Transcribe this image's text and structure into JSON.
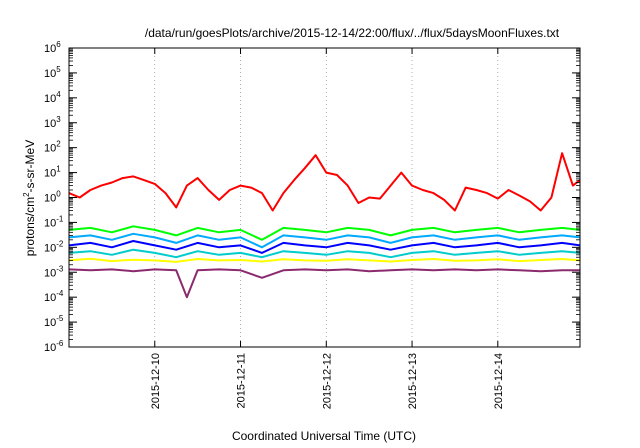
{
  "chart_data": {
    "type": "line",
    "title": "/data/run/goesPlots/archive/2015-12-14/22:00/flux/../flux/5daysMoonFluxes.txt",
    "xlabel": "Coordinated Universal Time (UTC)",
    "ylabel": {
      "prefix": "protons/cm",
      "sup": "2",
      "suffix": "-s-sr-MeV"
    },
    "x_range": [
      "2015-12-09 00:00",
      "2015-12-14 23:00"
    ],
    "x_ticks": [
      "2015-12-10",
      "2015-12-11",
      "2015-12-12",
      "2015-12-13",
      "2015-12-14"
    ],
    "y_scale": "log",
    "y_range": [
      1e-06,
      1000000.0
    ],
    "y_ticks": [
      {
        "base": "10",
        "exp": "-6",
        "value": 1e-06
      },
      {
        "base": "10",
        "exp": "-5",
        "value": 1e-05
      },
      {
        "base": "10",
        "exp": "-4",
        "value": 0.0001
      },
      {
        "base": "10",
        "exp": "-3",
        "value": 0.001
      },
      {
        "base": "10",
        "exp": "-2",
        "value": 0.01
      },
      {
        "base": "10",
        "exp": "-1",
        "value": 0.1
      },
      {
        "base": "10",
        "exp": "0",
        "value": 1
      },
      {
        "base": "10",
        "exp": "1",
        "value": 10
      },
      {
        "base": "10",
        "exp": "2",
        "value": 100
      },
      {
        "base": "10",
        "exp": "3",
        "value": 1000
      },
      {
        "base": "10",
        "exp": "4",
        "value": 10000
      },
      {
        "base": "10",
        "exp": "5",
        "value": 100000
      },
      {
        "base": "10",
        "exp": "6",
        "value": 1000000
      }
    ],
    "grid": "x dotted",
    "legend": "none",
    "series": [
      {
        "color": "#ff0000",
        "x": [
          "2015-12-09 00:00",
          "2015-12-09 03:00",
          "2015-12-09 06:00",
          "2015-12-09 09:00",
          "2015-12-09 12:00",
          "2015-12-09 15:00",
          "2015-12-09 18:00",
          "2015-12-09 21:00",
          "2015-12-10 00:00",
          "2015-12-10 03:00",
          "2015-12-10 06:00",
          "2015-12-10 09:00",
          "2015-12-10 12:00",
          "2015-12-10 15:00",
          "2015-12-10 18:00",
          "2015-12-10 21:00",
          "2015-12-11 00:00",
          "2015-12-11 03:00",
          "2015-12-11 06:00",
          "2015-12-11 09:00",
          "2015-12-11 12:00",
          "2015-12-11 15:00",
          "2015-12-11 18:00",
          "2015-12-11 21:00",
          "2015-12-12 00:00",
          "2015-12-12 03:00",
          "2015-12-12 06:00",
          "2015-12-12 09:00",
          "2015-12-12 12:00",
          "2015-12-12 15:00",
          "2015-12-12 18:00",
          "2015-12-12 21:00",
          "2015-12-13 00:00",
          "2015-12-13 03:00",
          "2015-12-13 06:00",
          "2015-12-13 09:00",
          "2015-12-13 12:00",
          "2015-12-13 15:00",
          "2015-12-13 18:00",
          "2015-12-13 21:00",
          "2015-12-14 00:00",
          "2015-12-14 03:00",
          "2015-12-14 06:00",
          "2015-12-14 09:00",
          "2015-12-14 12:00",
          "2015-12-14 15:00",
          "2015-12-14 18:00",
          "2015-12-14 21:00",
          "2015-12-14 23:00"
        ],
        "values": [
          1.5,
          1.0,
          2.0,
          3.0,
          4.0,
          6.0,
          7.0,
          5.0,
          3.5,
          1.5,
          0.4,
          3.0,
          6.0,
          2.0,
          0.8,
          2.0,
          3.0,
          2.5,
          1.5,
          0.3,
          1.5,
          5.0,
          15,
          50,
          10,
          8,
          3,
          0.6,
          1.0,
          0.9,
          3.0,
          10,
          3.0,
          2.0,
          1.5,
          0.8,
          0.3,
          2.5,
          2.0,
          1.5,
          0.9,
          2.0,
          1.2,
          0.7,
          0.3,
          1.0,
          60,
          3.0,
          5.0
        ]
      },
      {
        "color": "#00ff00",
        "x": [
          "2015-12-09 00:00",
          "2015-12-09 06:00",
          "2015-12-09 12:00",
          "2015-12-09 18:00",
          "2015-12-10 00:00",
          "2015-12-10 06:00",
          "2015-12-10 12:00",
          "2015-12-10 18:00",
          "2015-12-11 00:00",
          "2015-12-11 06:00",
          "2015-12-11 12:00",
          "2015-12-11 18:00",
          "2015-12-12 00:00",
          "2015-12-12 06:00",
          "2015-12-12 12:00",
          "2015-12-12 18:00",
          "2015-12-13 00:00",
          "2015-12-13 06:00",
          "2015-12-13 12:00",
          "2015-12-13 18:00",
          "2015-12-14 00:00",
          "2015-12-14 06:00",
          "2015-12-14 12:00",
          "2015-12-14 18:00",
          "2015-12-14 23:00"
        ],
        "values": [
          0.05,
          0.06,
          0.04,
          0.07,
          0.05,
          0.03,
          0.06,
          0.04,
          0.05,
          0.02,
          0.06,
          0.05,
          0.04,
          0.06,
          0.05,
          0.03,
          0.05,
          0.06,
          0.04,
          0.05,
          0.06,
          0.04,
          0.05,
          0.06,
          0.05
        ]
      },
      {
        "color": "#00aaff",
        "x": [
          "2015-12-09 00:00",
          "2015-12-09 06:00",
          "2015-12-09 12:00",
          "2015-12-09 18:00",
          "2015-12-10 00:00",
          "2015-12-10 06:00",
          "2015-12-10 12:00",
          "2015-12-10 18:00",
          "2015-12-11 00:00",
          "2015-12-11 06:00",
          "2015-12-11 12:00",
          "2015-12-11 18:00",
          "2015-12-12 00:00",
          "2015-12-12 06:00",
          "2015-12-12 12:00",
          "2015-12-12 18:00",
          "2015-12-13 00:00",
          "2015-12-13 06:00",
          "2015-12-13 12:00",
          "2015-12-13 18:00",
          "2015-12-14 00:00",
          "2015-12-14 06:00",
          "2015-12-14 12:00",
          "2015-12-14 18:00",
          "2015-12-14 23:00"
        ],
        "values": [
          0.025,
          0.03,
          0.02,
          0.035,
          0.025,
          0.015,
          0.03,
          0.02,
          0.025,
          0.01,
          0.03,
          0.025,
          0.02,
          0.03,
          0.025,
          0.015,
          0.025,
          0.03,
          0.02,
          0.025,
          0.03,
          0.02,
          0.025,
          0.03,
          0.025
        ]
      },
      {
        "color": "#0000ff",
        "x": [
          "2015-12-09 00:00",
          "2015-12-09 06:00",
          "2015-12-09 12:00",
          "2015-12-09 18:00",
          "2015-12-10 00:00",
          "2015-12-10 06:00",
          "2015-12-10 12:00",
          "2015-12-10 18:00",
          "2015-12-11 00:00",
          "2015-12-11 06:00",
          "2015-12-11 12:00",
          "2015-12-11 18:00",
          "2015-12-12 00:00",
          "2015-12-12 06:00",
          "2015-12-12 12:00",
          "2015-12-12 18:00",
          "2015-12-13 00:00",
          "2015-12-13 06:00",
          "2015-12-13 12:00",
          "2015-12-13 18:00",
          "2015-12-14 00:00",
          "2015-12-14 06:00",
          "2015-12-14 12:00",
          "2015-12-14 18:00",
          "2015-12-14 23:00"
        ],
        "values": [
          0.012,
          0.015,
          0.01,
          0.018,
          0.012,
          0.008,
          0.015,
          0.01,
          0.012,
          0.006,
          0.015,
          0.012,
          0.01,
          0.015,
          0.012,
          0.008,
          0.012,
          0.015,
          0.01,
          0.012,
          0.015,
          0.01,
          0.012,
          0.015,
          0.012
        ]
      },
      {
        "color": "#00cccc",
        "x": [
          "2015-12-09 00:00",
          "2015-12-09 06:00",
          "2015-12-09 12:00",
          "2015-12-09 18:00",
          "2015-12-10 00:00",
          "2015-12-10 06:00",
          "2015-12-10 12:00",
          "2015-12-10 18:00",
          "2015-12-11 00:00",
          "2015-12-11 06:00",
          "2015-12-11 12:00",
          "2015-12-11 18:00",
          "2015-12-12 00:00",
          "2015-12-12 06:00",
          "2015-12-12 12:00",
          "2015-12-12 18:00",
          "2015-12-13 00:00",
          "2015-12-13 06:00",
          "2015-12-13 12:00",
          "2015-12-13 18:00",
          "2015-12-14 00:00",
          "2015-12-14 06:00",
          "2015-12-14 12:00",
          "2015-12-14 18:00",
          "2015-12-14 23:00"
        ],
        "values": [
          0.006,
          0.007,
          0.005,
          0.008,
          0.006,
          0.004,
          0.007,
          0.005,
          0.006,
          0.004,
          0.007,
          0.006,
          0.005,
          0.007,
          0.006,
          0.004,
          0.006,
          0.007,
          0.005,
          0.006,
          0.007,
          0.005,
          0.006,
          0.007,
          0.006
        ]
      },
      {
        "color": "#ffff00",
        "x": [
          "2015-12-09 00:00",
          "2015-12-09 06:00",
          "2015-12-09 12:00",
          "2015-12-09 18:00",
          "2015-12-10 00:00",
          "2015-12-10 06:00",
          "2015-12-10 12:00",
          "2015-12-10 18:00",
          "2015-12-11 00:00",
          "2015-12-11 06:00",
          "2015-12-11 12:00",
          "2015-12-11 18:00",
          "2015-12-12 00:00",
          "2015-12-12 06:00",
          "2015-12-12 12:00",
          "2015-12-12 18:00",
          "2015-12-13 00:00",
          "2015-12-13 06:00",
          "2015-12-13 12:00",
          "2015-12-13 18:00",
          "2015-12-14 00:00",
          "2015-12-14 06:00",
          "2015-12-14 12:00",
          "2015-12-14 18:00",
          "2015-12-14 23:00"
        ],
        "values": [
          0.003,
          0.0035,
          0.0028,
          0.0032,
          0.003,
          0.0026,
          0.0034,
          0.003,
          0.0031,
          0.0027,
          0.0033,
          0.003,
          0.0029,
          0.0033,
          0.003,
          0.0027,
          0.0031,
          0.0034,
          0.0029,
          0.003,
          0.0033,
          0.0028,
          0.0031,
          0.0034,
          0.003
        ]
      },
      {
        "color": "#8b2a6e",
        "x": [
          "2015-12-09 00:00",
          "2015-12-09 06:00",
          "2015-12-09 12:00",
          "2015-12-09 18:00",
          "2015-12-10 00:00",
          "2015-12-10 06:00",
          "2015-12-10 09:00",
          "2015-12-10 12:00",
          "2015-12-10 18:00",
          "2015-12-11 00:00",
          "2015-12-11 06:00",
          "2015-12-11 12:00",
          "2015-12-11 18:00",
          "2015-12-12 00:00",
          "2015-12-12 06:00",
          "2015-12-12 12:00",
          "2015-12-12 18:00",
          "2015-12-13 00:00",
          "2015-12-13 06:00",
          "2015-12-13 12:00",
          "2015-12-13 18:00",
          "2015-12-14 00:00",
          "2015-12-14 06:00",
          "2015-12-14 12:00",
          "2015-12-14 18:00",
          "2015-12-14 23:00"
        ],
        "values": [
          0.0013,
          0.0012,
          0.0013,
          0.0011,
          0.0013,
          0.0012,
          0.0001,
          0.0012,
          0.0013,
          0.0012,
          0.0006,
          0.0012,
          0.0013,
          0.0012,
          0.0013,
          0.0011,
          0.0012,
          0.0013,
          0.0012,
          0.0013,
          0.0012,
          0.0013,
          0.0012,
          0.0011,
          0.0012,
          0.0012
        ]
      }
    ]
  }
}
